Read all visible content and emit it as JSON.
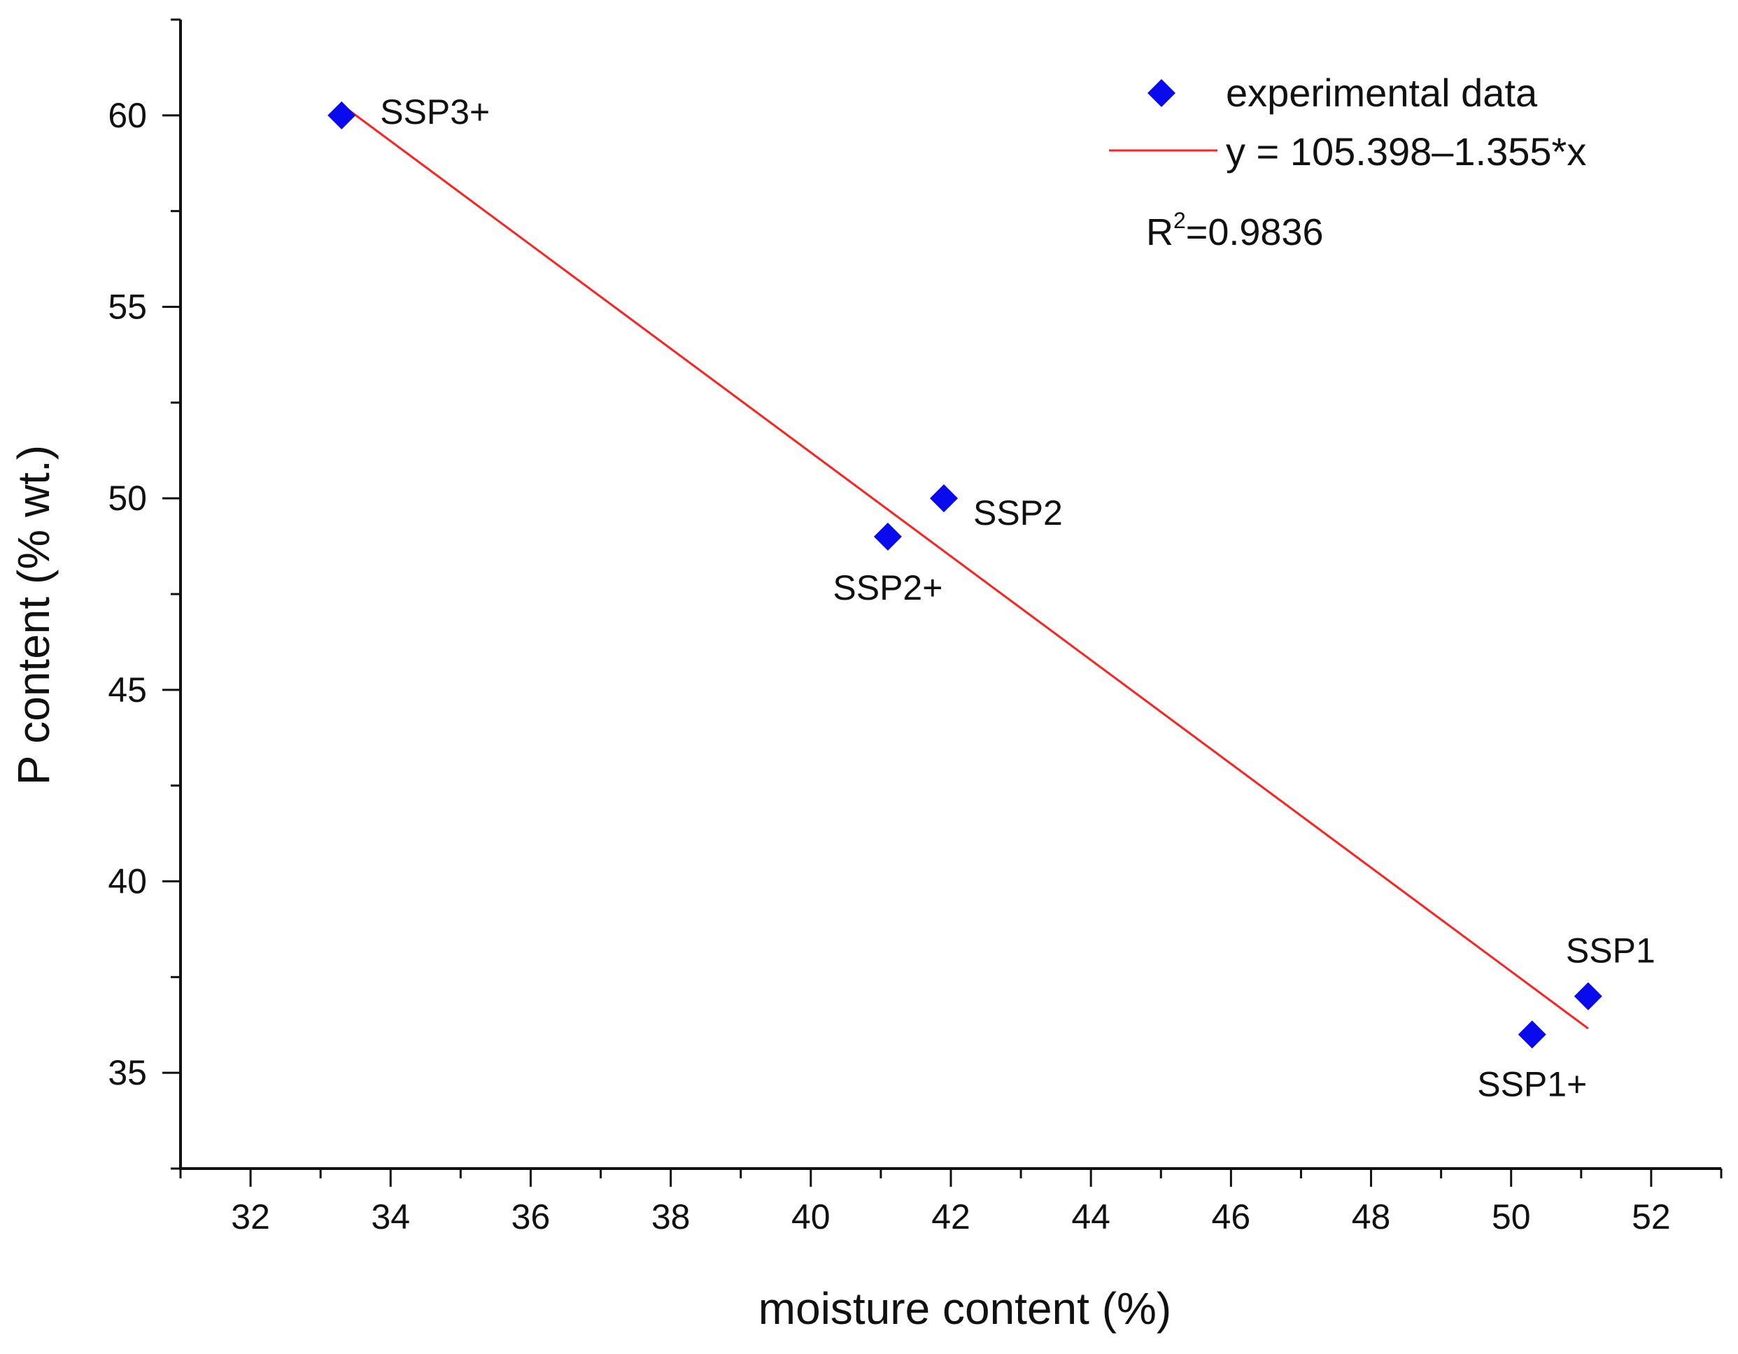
{
  "chart_data": {
    "type": "scatter",
    "title": "",
    "xlabel": "moisture content (%)",
    "ylabel": "P content (% wt.)",
    "xlim": [
      31,
      53
    ],
    "ylim": [
      32.5,
      62.5
    ],
    "x_ticks": [
      32,
      34,
      36,
      38,
      40,
      42,
      44,
      46,
      48,
      50,
      52
    ],
    "y_ticks": [
      35,
      40,
      45,
      50,
      55,
      60
    ],
    "x_minor_step": 1,
    "y_minor_step": 2.5,
    "grid": false,
    "legend_position": "top-right",
    "colors": {
      "points": "#0a0aee",
      "fit_line": "#ff2020",
      "axes": "#111111"
    },
    "series": [
      {
        "name": "experimental data",
        "kind": "scatter",
        "marker": "diamond",
        "points": [
          {
            "x": 33.3,
            "y": 60.0,
            "label": "SSP3+"
          },
          {
            "x": 41.9,
            "y": 50.0,
            "label": "SSP2"
          },
          {
            "x": 41.1,
            "y": 49.0,
            "label": "SSP2+"
          },
          {
            "x": 51.1,
            "y": 37.0,
            "label": "SSP1"
          },
          {
            "x": 50.3,
            "y": 36.0,
            "label": "SSP1+"
          }
        ]
      },
      {
        "name": "y = 105.398–1.355*x",
        "kind": "line",
        "intercept": 105.398,
        "slope": -1.355,
        "x_range": [
          33.3,
          51.1
        ]
      }
    ],
    "annotation": {
      "r2_prefix": "R",
      "r2_superscript": "2",
      "r2_value": "=0.9836"
    }
  }
}
